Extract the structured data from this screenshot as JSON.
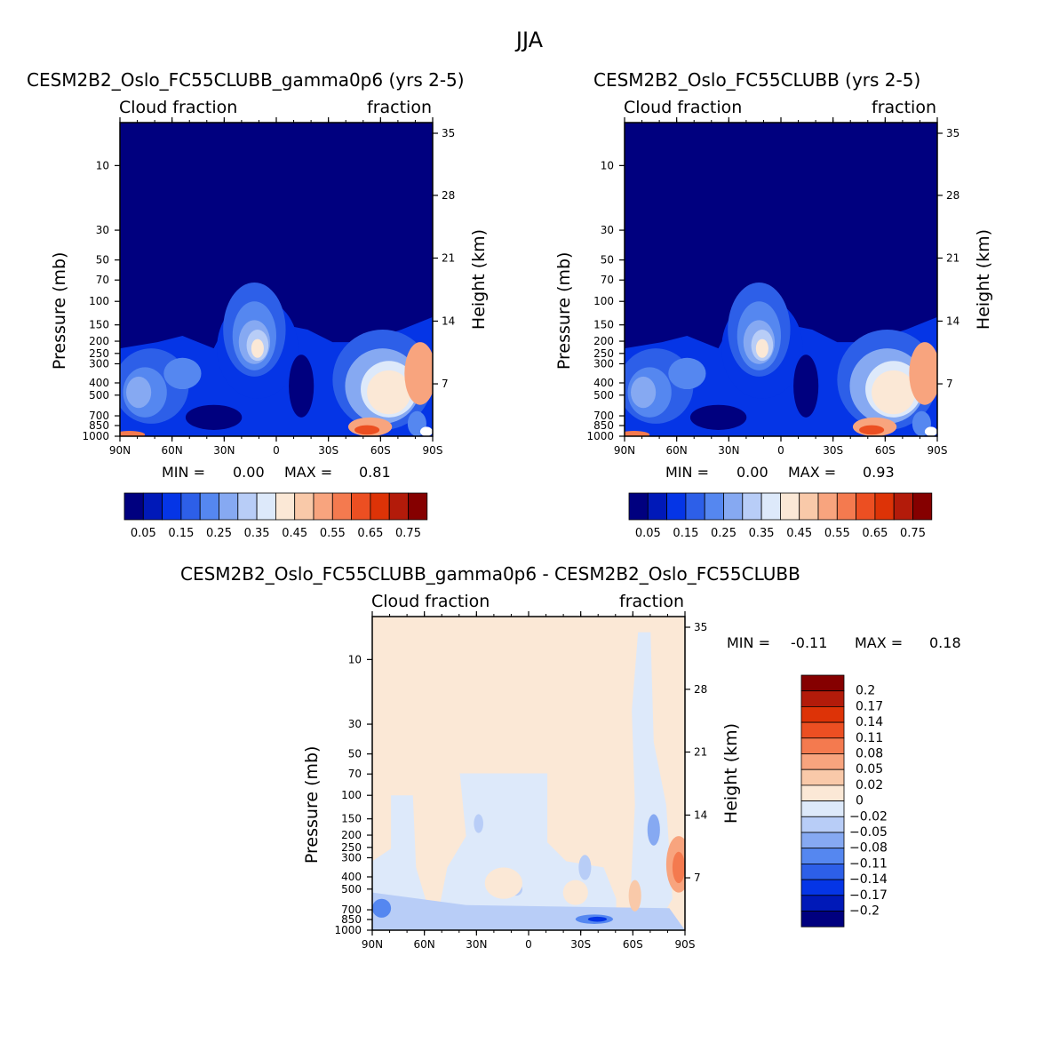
{
  "main_title": "JJA",
  "panels": [
    {
      "title": "CESM2B2_Oslo_FC55CLUBB_gamma0p6 (yrs 2-5)",
      "left_corner": "Cloud fraction",
      "right_corner": "fraction",
      "min_label": "MIN =",
      "min_value": "0.00",
      "max_label": "MAX =",
      "max_value": "0.81"
    },
    {
      "title": "CESM2B2_Oslo_FC55CLUBB (yrs 2-5)",
      "left_corner": "Cloud fraction",
      "right_corner": "fraction",
      "min_label": "MIN =",
      "min_value": "0.00",
      "max_label": "MAX =",
      "max_value": "0.93"
    },
    {
      "title": "CESM2B2_Oslo_FC55CLUBB_gamma0p6 - CESM2B2_Oslo_FC55CLUBB",
      "left_corner": "Cloud fraction",
      "right_corner": "fraction",
      "min_label": "MIN =",
      "min_value": "-0.11",
      "max_label": "MAX =",
      "max_value": "0.18"
    }
  ],
  "chart_data": [
    {
      "type": "heatmap",
      "title": "CESM2B2_Oslo_FC55CLUBB_gamma0p6 (yrs 2-5)",
      "xlabel": "",
      "ylabel": "Pressure (mb)",
      "y2label": "Height (km)",
      "x_ticks": [
        "90N",
        "60N",
        "30N",
        "0",
        "30S",
        "60S",
        "90S"
      ],
      "y_ticks": [
        "10",
        "30",
        "50",
        "70",
        "100",
        "150",
        "200",
        "250",
        "300",
        "400",
        "500",
        "700",
        "850",
        "1000"
      ],
      "y2_ticks": [
        "35",
        "28",
        "21",
        "14",
        "7"
      ],
      "colorbar_labels": [
        "0.05",
        "0.15",
        "0.25",
        "0.35",
        "0.45",
        "0.55",
        "0.65",
        "0.75"
      ],
      "min": 0.0,
      "max": 0.81
    },
    {
      "type": "heatmap",
      "title": "CESM2B2_Oslo_FC55CLUBB (yrs 2-5)",
      "xlabel": "",
      "ylabel": "Pressure (mb)",
      "y2label": "Height (km)",
      "x_ticks": [
        "90N",
        "60N",
        "30N",
        "0",
        "30S",
        "60S",
        "90S"
      ],
      "y_ticks": [
        "10",
        "30",
        "50",
        "70",
        "100",
        "150",
        "200",
        "250",
        "300",
        "400",
        "500",
        "700",
        "850",
        "1000"
      ],
      "y2_ticks": [
        "35",
        "28",
        "21",
        "14",
        "7"
      ],
      "colorbar_labels": [
        "0.05",
        "0.15",
        "0.25",
        "0.35",
        "0.45",
        "0.55",
        "0.65",
        "0.75"
      ],
      "min": 0.0,
      "max": 0.93
    },
    {
      "type": "heatmap",
      "title": "CESM2B2_Oslo_FC55CLUBB_gamma0p6 - CESM2B2_Oslo_FC55CLUBB",
      "xlabel": "",
      "ylabel": "Pressure (mb)",
      "y2label": "Height (km)",
      "x_ticks": [
        "90N",
        "60N",
        "30N",
        "0",
        "30S",
        "60S",
        "90S"
      ],
      "y_ticks": [
        "10",
        "30",
        "50",
        "70",
        "100",
        "150",
        "200",
        "250",
        "300",
        "400",
        "500",
        "700",
        "850",
        "1000"
      ],
      "y2_ticks": [
        "35",
        "28",
        "21",
        "14",
        "7"
      ],
      "colorbar_labels": [
        "0.2",
        "0.17",
        "0.14",
        "0.11",
        "0.08",
        "0.05",
        "0.02",
        "0",
        "-0.02",
        "-0.05",
        "-0.08",
        "-0.11",
        "-0.14",
        "-0.17",
        "-0.2"
      ],
      "min": -0.11,
      "max": 0.18
    }
  ],
  "colors": {
    "abs_palette": [
      "#00007f",
      "#0019b8",
      "#0535e6",
      "#2d5fe8",
      "#5587f0",
      "#86a9f2",
      "#b8cdf7",
      "#dde9fa",
      "#fbe8d6",
      "#f9c9a9",
      "#f8a47e",
      "#f47a4f",
      "#ec4f22",
      "#dd3307",
      "#b31b0a",
      "#850000"
    ],
    "diff_palette": [
      "#00007f",
      "#0019b8",
      "#0535e6",
      "#2d5fe8",
      "#5587f0",
      "#86a9f2",
      "#b8cdf7",
      "#dde9fa",
      "#fbe8d6",
      "#f9c9a9",
      "#f8a47e",
      "#f47a4f",
      "#ec4f22",
      "#dd3307",
      "#b31b0a",
      "#850000"
    ]
  }
}
